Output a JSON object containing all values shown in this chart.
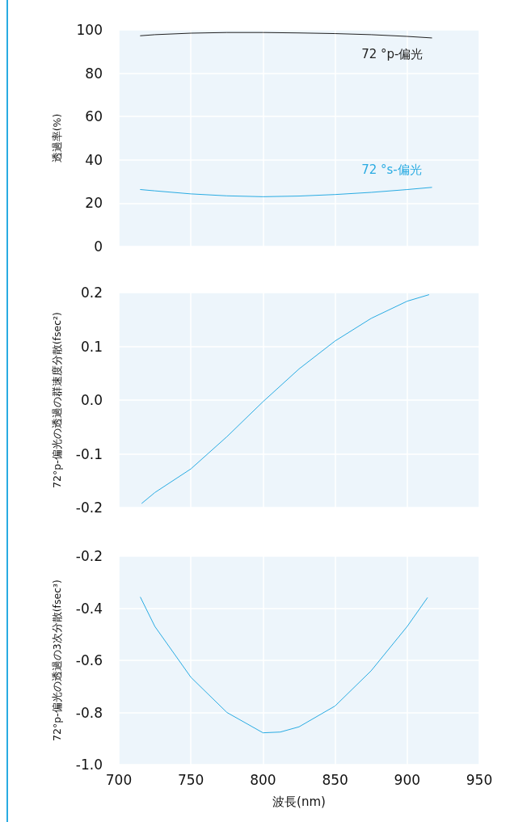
{
  "chart_data": [
    {
      "type": "line",
      "ylabel": "透過率(%)",
      "x": [
        715,
        725,
        750,
        775,
        800,
        825,
        850,
        875,
        900,
        917
      ],
      "xlim": [
        700,
        950
      ],
      "xticks": [
        700,
        750,
        800,
        850,
        900,
        950
      ],
      "ylim": [
        0,
        100
      ],
      "yticks": [
        0,
        20,
        40,
        60,
        80,
        100
      ],
      "grid": true,
      "tick_labels": "y",
      "marker": "none",
      "series": [
        {
          "name": "72 °p-偏光",
          "color": "#222222",
          "values": [
            97.3,
            97.8,
            98.5,
            98.8,
            98.8,
            98.6,
            98.3,
            97.8,
            97.0,
            96.3
          ]
        },
        {
          "name": "72 °s-偏光",
          "color": "#29abe2",
          "values": [
            26.3,
            25.7,
            24.3,
            23.4,
            23.0,
            23.3,
            24.0,
            25.0,
            26.3,
            27.3
          ]
        }
      ]
    },
    {
      "type": "line",
      "ylabel": "72°p-偏光の透過の群速度分散(fsec²)",
      "x": [
        716,
        725,
        750,
        775,
        800,
        825,
        850,
        875,
        900,
        915
      ],
      "xlim": [
        700,
        950
      ],
      "xticks": [
        700,
        750,
        800,
        850,
        900,
        950
      ],
      "ylim": [
        -0.2,
        0.2
      ],
      "yticks": [
        {
          "value": -0.2,
          "label": "-0.2"
        },
        {
          "value": -0.1,
          "label": "-0.1"
        },
        {
          "value": 0,
          "label": "0.0"
        },
        {
          "value": 0.1,
          "label": "0.1"
        },
        {
          "value": 0.2,
          "label": "0.2"
        }
      ],
      "grid": true,
      "tick_labels": "y",
      "marker": "none",
      "series": [
        {
          "color": "#29abe2",
          "values": [
            -0.192,
            -0.172,
            -0.128,
            -0.068,
            -0.003,
            0.058,
            0.11,
            0.152,
            0.184,
            0.196
          ]
        }
      ]
    },
    {
      "type": "line",
      "ylabel": "72°p-偏光の透過の3次分散(fsec³)",
      "xlabel": "波長(nm)",
      "x": [
        715,
        725,
        750,
        775,
        800,
        812,
        825,
        850,
        875,
        900,
        914
      ],
      "xlim": [
        700,
        950
      ],
      "xticks": [
        700,
        750,
        800,
        850,
        900,
        950
      ],
      "ylim": [
        -1.0,
        -0.2
      ],
      "yticks": [
        {
          "value": -1.0,
          "label": "-1.0"
        },
        {
          "value": -0.8,
          "label": "-0.8"
        },
        {
          "value": -0.6,
          "label": "-0.6"
        },
        {
          "value": -0.4,
          "label": "-0.4"
        },
        {
          "value": -0.2,
          "label": "-0.2"
        }
      ],
      "grid": true,
      "marker": "none",
      "series": [
        {
          "color": "#29abe2",
          "values": [
            -0.358,
            -0.47,
            -0.665,
            -0.8,
            -0.878,
            -0.875,
            -0.855,
            -0.775,
            -0.64,
            -0.47,
            -0.36
          ]
        }
      ]
    }
  ]
}
